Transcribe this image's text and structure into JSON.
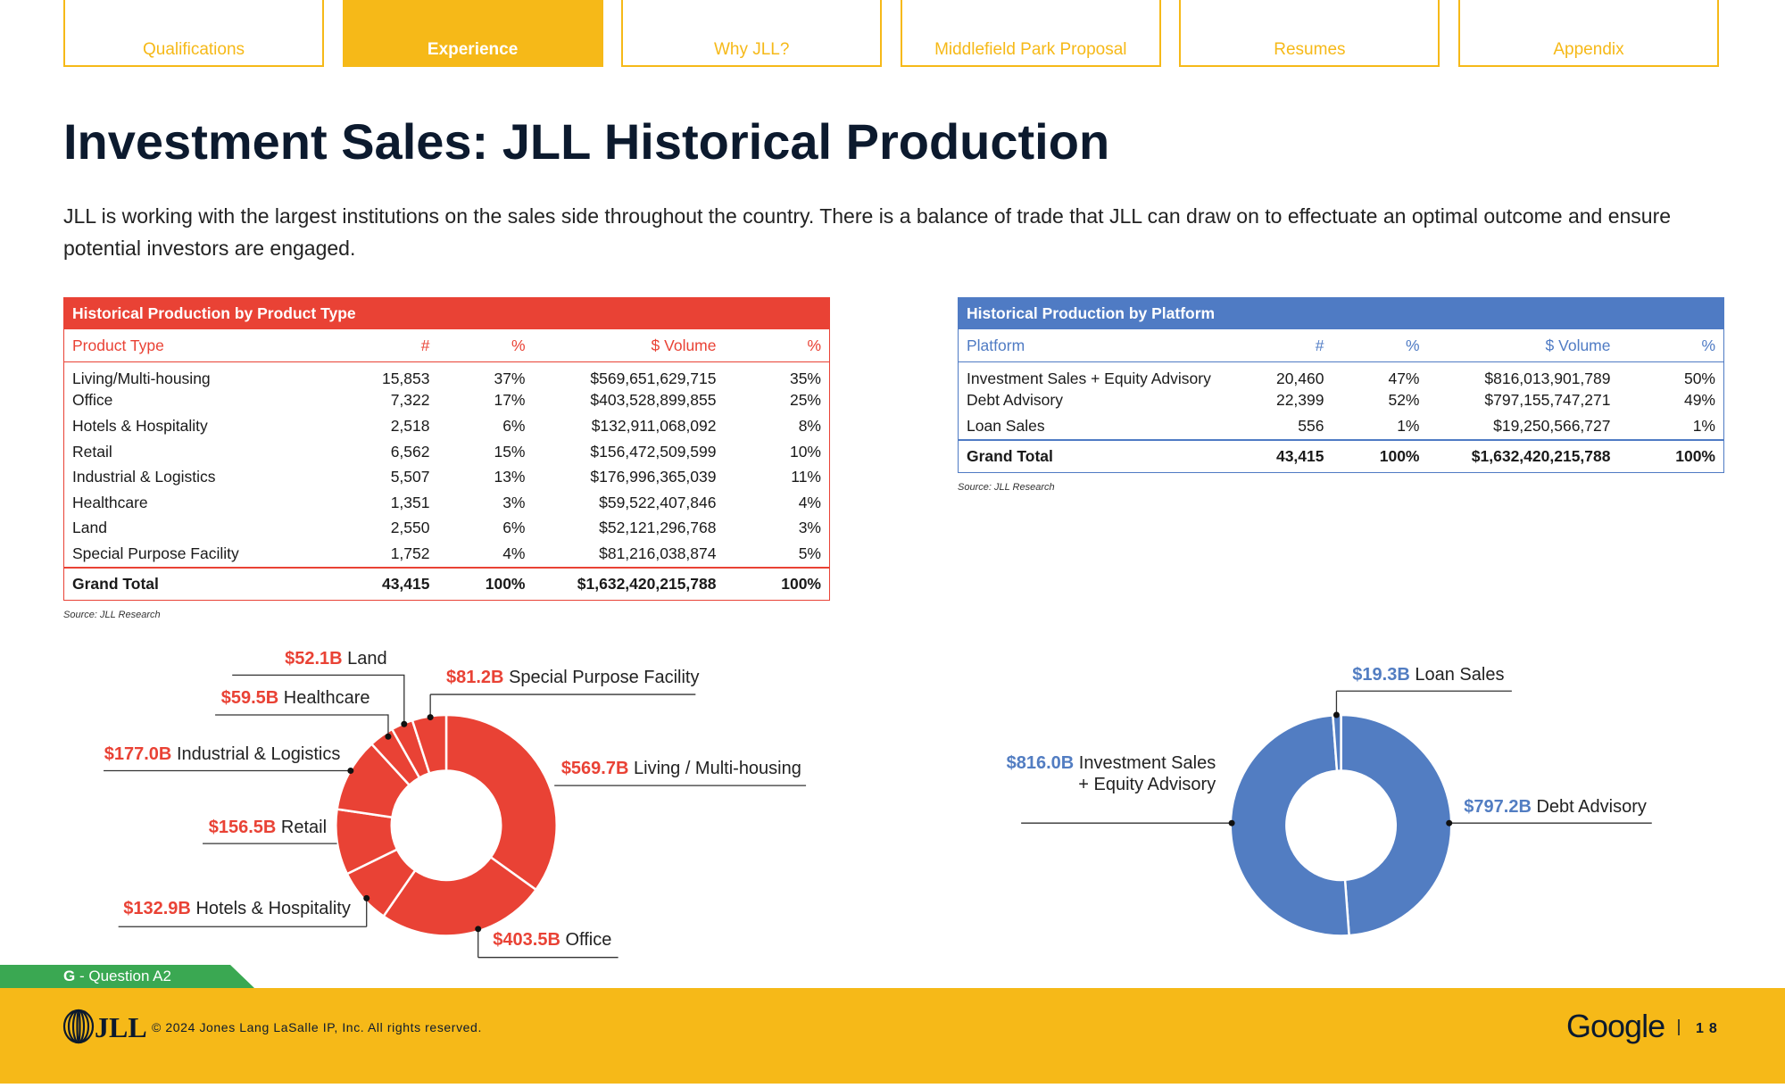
{
  "nav": {
    "tabs": [
      "Qualifications",
      "Experience",
      "Why JLL?",
      "Middlefield Park Proposal",
      "Resumes",
      "Appendix"
    ],
    "active": 1
  },
  "header": {
    "title": "Investment Sales: JLL Historical Production",
    "intro": "JLL is working with the largest institutions on the sales side throughout the country. There is a balance of trade that JLL can draw on to effectuate an optimal outcome and ensure potential investors are engaged."
  },
  "tables": [
    {
      "title": "Historical Production by Product Type",
      "color": "#e94235",
      "columns": [
        "Product Type",
        "#",
        "%",
        "$ Volume",
        "%"
      ],
      "rows": [
        [
          "Living/Multi-housing",
          "15,853",
          "37%",
          "$569,651,629,715",
          "35%"
        ],
        [
          "Office",
          "7,322",
          "17%",
          "$403,528,899,855",
          "25%"
        ],
        [
          "Hotels & Hospitality",
          "2,518",
          "6%",
          "$132,911,068,092",
          "8%"
        ],
        [
          "Retail",
          "6,562",
          "15%",
          "$156,472,509,599",
          "10%"
        ],
        [
          "Industrial & Logistics",
          "5,507",
          "13%",
          "$176,996,365,039",
          "11%"
        ],
        [
          "Healthcare",
          "1,351",
          "3%",
          "$59,522,407,846",
          "4%"
        ],
        [
          "Land",
          "2,550",
          "6%",
          "$52,121,296,768",
          "3%"
        ],
        [
          "Special Purpose Facility",
          "1,752",
          "4%",
          "$81,216,038,874",
          "5%"
        ]
      ],
      "total": [
        "Grand Total",
        "43,415",
        "100%",
        "$1,632,420,215,788",
        "100%"
      ],
      "source": "Source: JLL Research"
    },
    {
      "title": "Historical Production by Platform",
      "color": "#4f7bc4",
      "columns": [
        "Platform",
        "#",
        "%",
        "$ Volume",
        "%"
      ],
      "rows": [
        [
          "Investment Sales + Equity Advisory",
          "20,460",
          "47%",
          "$816,013,901,789",
          "50%"
        ],
        [
          "Debt Advisory",
          "22,399",
          "52%",
          "$797,155,747,271",
          "49%"
        ],
        [
          "Loan Sales",
          "556",
          "1%",
          "$19,250,566,727",
          "1%"
        ]
      ],
      "total": [
        "Grand Total",
        "43,415",
        "100%",
        "$1,632,420,215,788",
        "100%"
      ],
      "source": "Source: JLL Research"
    }
  ],
  "chart_data": [
    {
      "type": "pie",
      "donut": true,
      "color": "#e94235",
      "categories": [
        "Living / Multi-housing",
        "Office",
        "Hotels & Hospitality",
        "Retail",
        "Industrial & Logistics",
        "Healthcare",
        "Land",
        "Special Purpose Facility"
      ],
      "values": [
        569.7,
        403.5,
        132.9,
        156.5,
        177.0,
        59.5,
        52.1,
        81.2
      ],
      "value_labels": [
        "$569.7B",
        "$403.5B",
        "$132.9B",
        "$156.5B",
        "$177.0B",
        "$59.5B",
        "$52.1B",
        "$81.2B"
      ]
    },
    {
      "type": "pie",
      "donut": true,
      "color": "#527dc2",
      "categories": [
        "Debt Advisory",
        "Investment Sales + Equity Advisory",
        "Loan Sales"
      ],
      "values": [
        797.2,
        816.0,
        19.3
      ],
      "value_labels": [
        "$797.2B",
        "$816.0B",
        "$19.3B"
      ]
    }
  ],
  "footer": {
    "tag_letter": "G",
    "tag_text": "- Question A2",
    "logo": "JLL",
    "copyright": "© 2024 Jones Lang LaSalle IP, Inc. All rights reserved.",
    "brand": "Google",
    "page": "18"
  }
}
